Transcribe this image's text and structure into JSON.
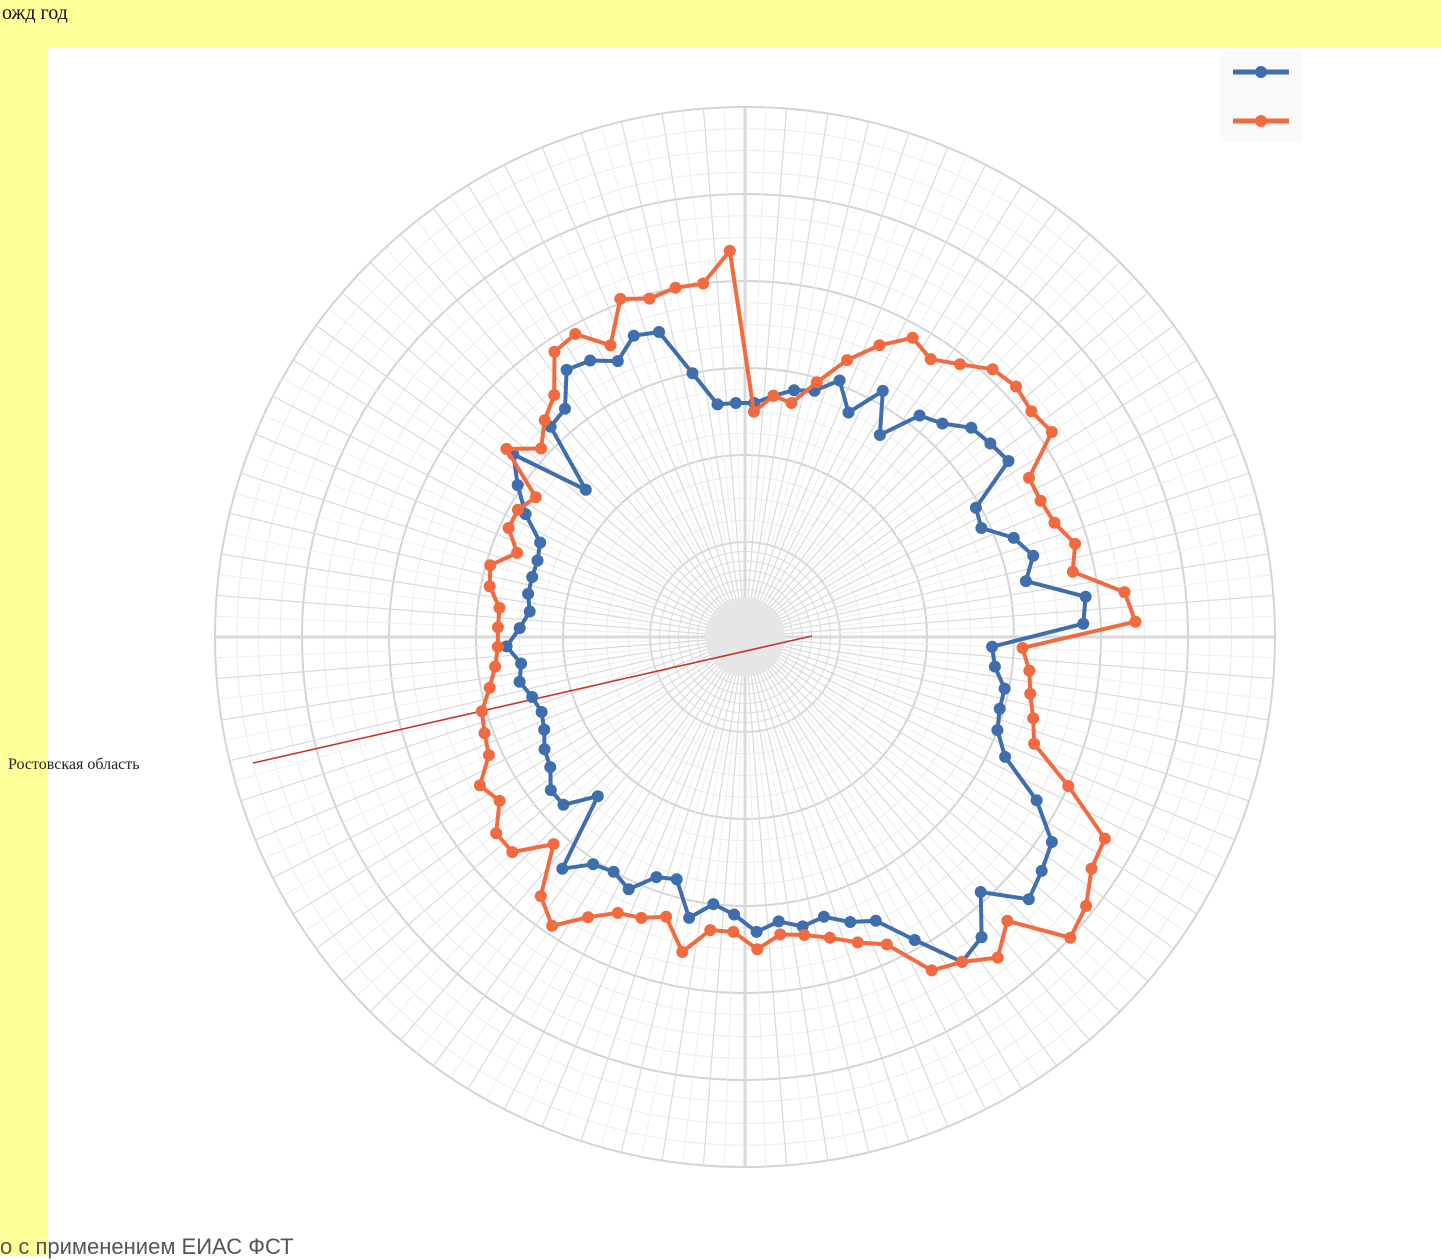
{
  "header": {
    "text": "ожд год"
  },
  "region_label": "Ростовская область",
  "footer": {
    "text": "о с применением ЕИАС ФСТ"
  },
  "colors": {
    "band": "#ffff99",
    "series_1": "#3f6eae",
    "series_2": "#f26a3f",
    "grid": "#d9d9d9",
    "highlight_line": "#c0392b"
  },
  "chart_data": {
    "type": "radar",
    "title": "",
    "grid": true,
    "legend_position": "top-right",
    "rmax": 100,
    "category_count": 80,
    "highlighted_category": "Ростовская область",
    "series": [
      {
        "name": "",
        "color": "#3f6eae",
        "values": [
          32,
          34,
          36,
          37,
          41,
          35,
          43,
          34,
          43,
          45,
          49,
          50,
          51,
          39,
          38,
          44,
          47,
          44,
          57,
          56,
          35,
          36,
          39,
          39,
          40,
          44,
          55,
          63,
          65,
          67,
          58,
          66,
          68,
          58,
          50,
          48,
          45,
          46,
          44,
          46,
          42,
          40,
          44,
          36,
          37,
          42,
          40,
          41,
          46,
          28,
          35,
          35,
          32,
          31,
          29,
          28,
          29,
          31,
          30,
          33,
          30,
          28,
          29,
          29,
          29,
          30,
          36,
          41,
          46,
          28,
          44,
          45,
          52,
          51,
          48,
          52,
          51,
          40,
          32,
          32
        ]
      },
      {
        "name": "",
        "color": "#f26a3f",
        "values": [
          30,
          34,
          33,
          39,
          46,
          52,
          57,
          55,
          58,
          62,
          63,
          62,
          63,
          53,
          53,
          54,
          57,
          55,
          66,
          68,
          42,
          44,
          45,
          47,
          49,
          60,
          73,
          74,
          78,
          80,
          67,
          72,
          68,
          66,
          56,
          53,
          50,
          48,
          47,
          50,
          46,
          46,
          52,
          45,
          47,
          48,
          52,
          58,
          54,
          43,
          51,
          51,
          46,
          48,
          43,
          42,
          41,
          38,
          36,
          35,
          35,
          35,
          38,
          39,
          34,
          38,
          38,
          36,
          48,
          42,
          46,
          49,
          57,
          58,
          52,
          61,
          59,
          60,
          60,
          67
        ]
      }
    ]
  }
}
